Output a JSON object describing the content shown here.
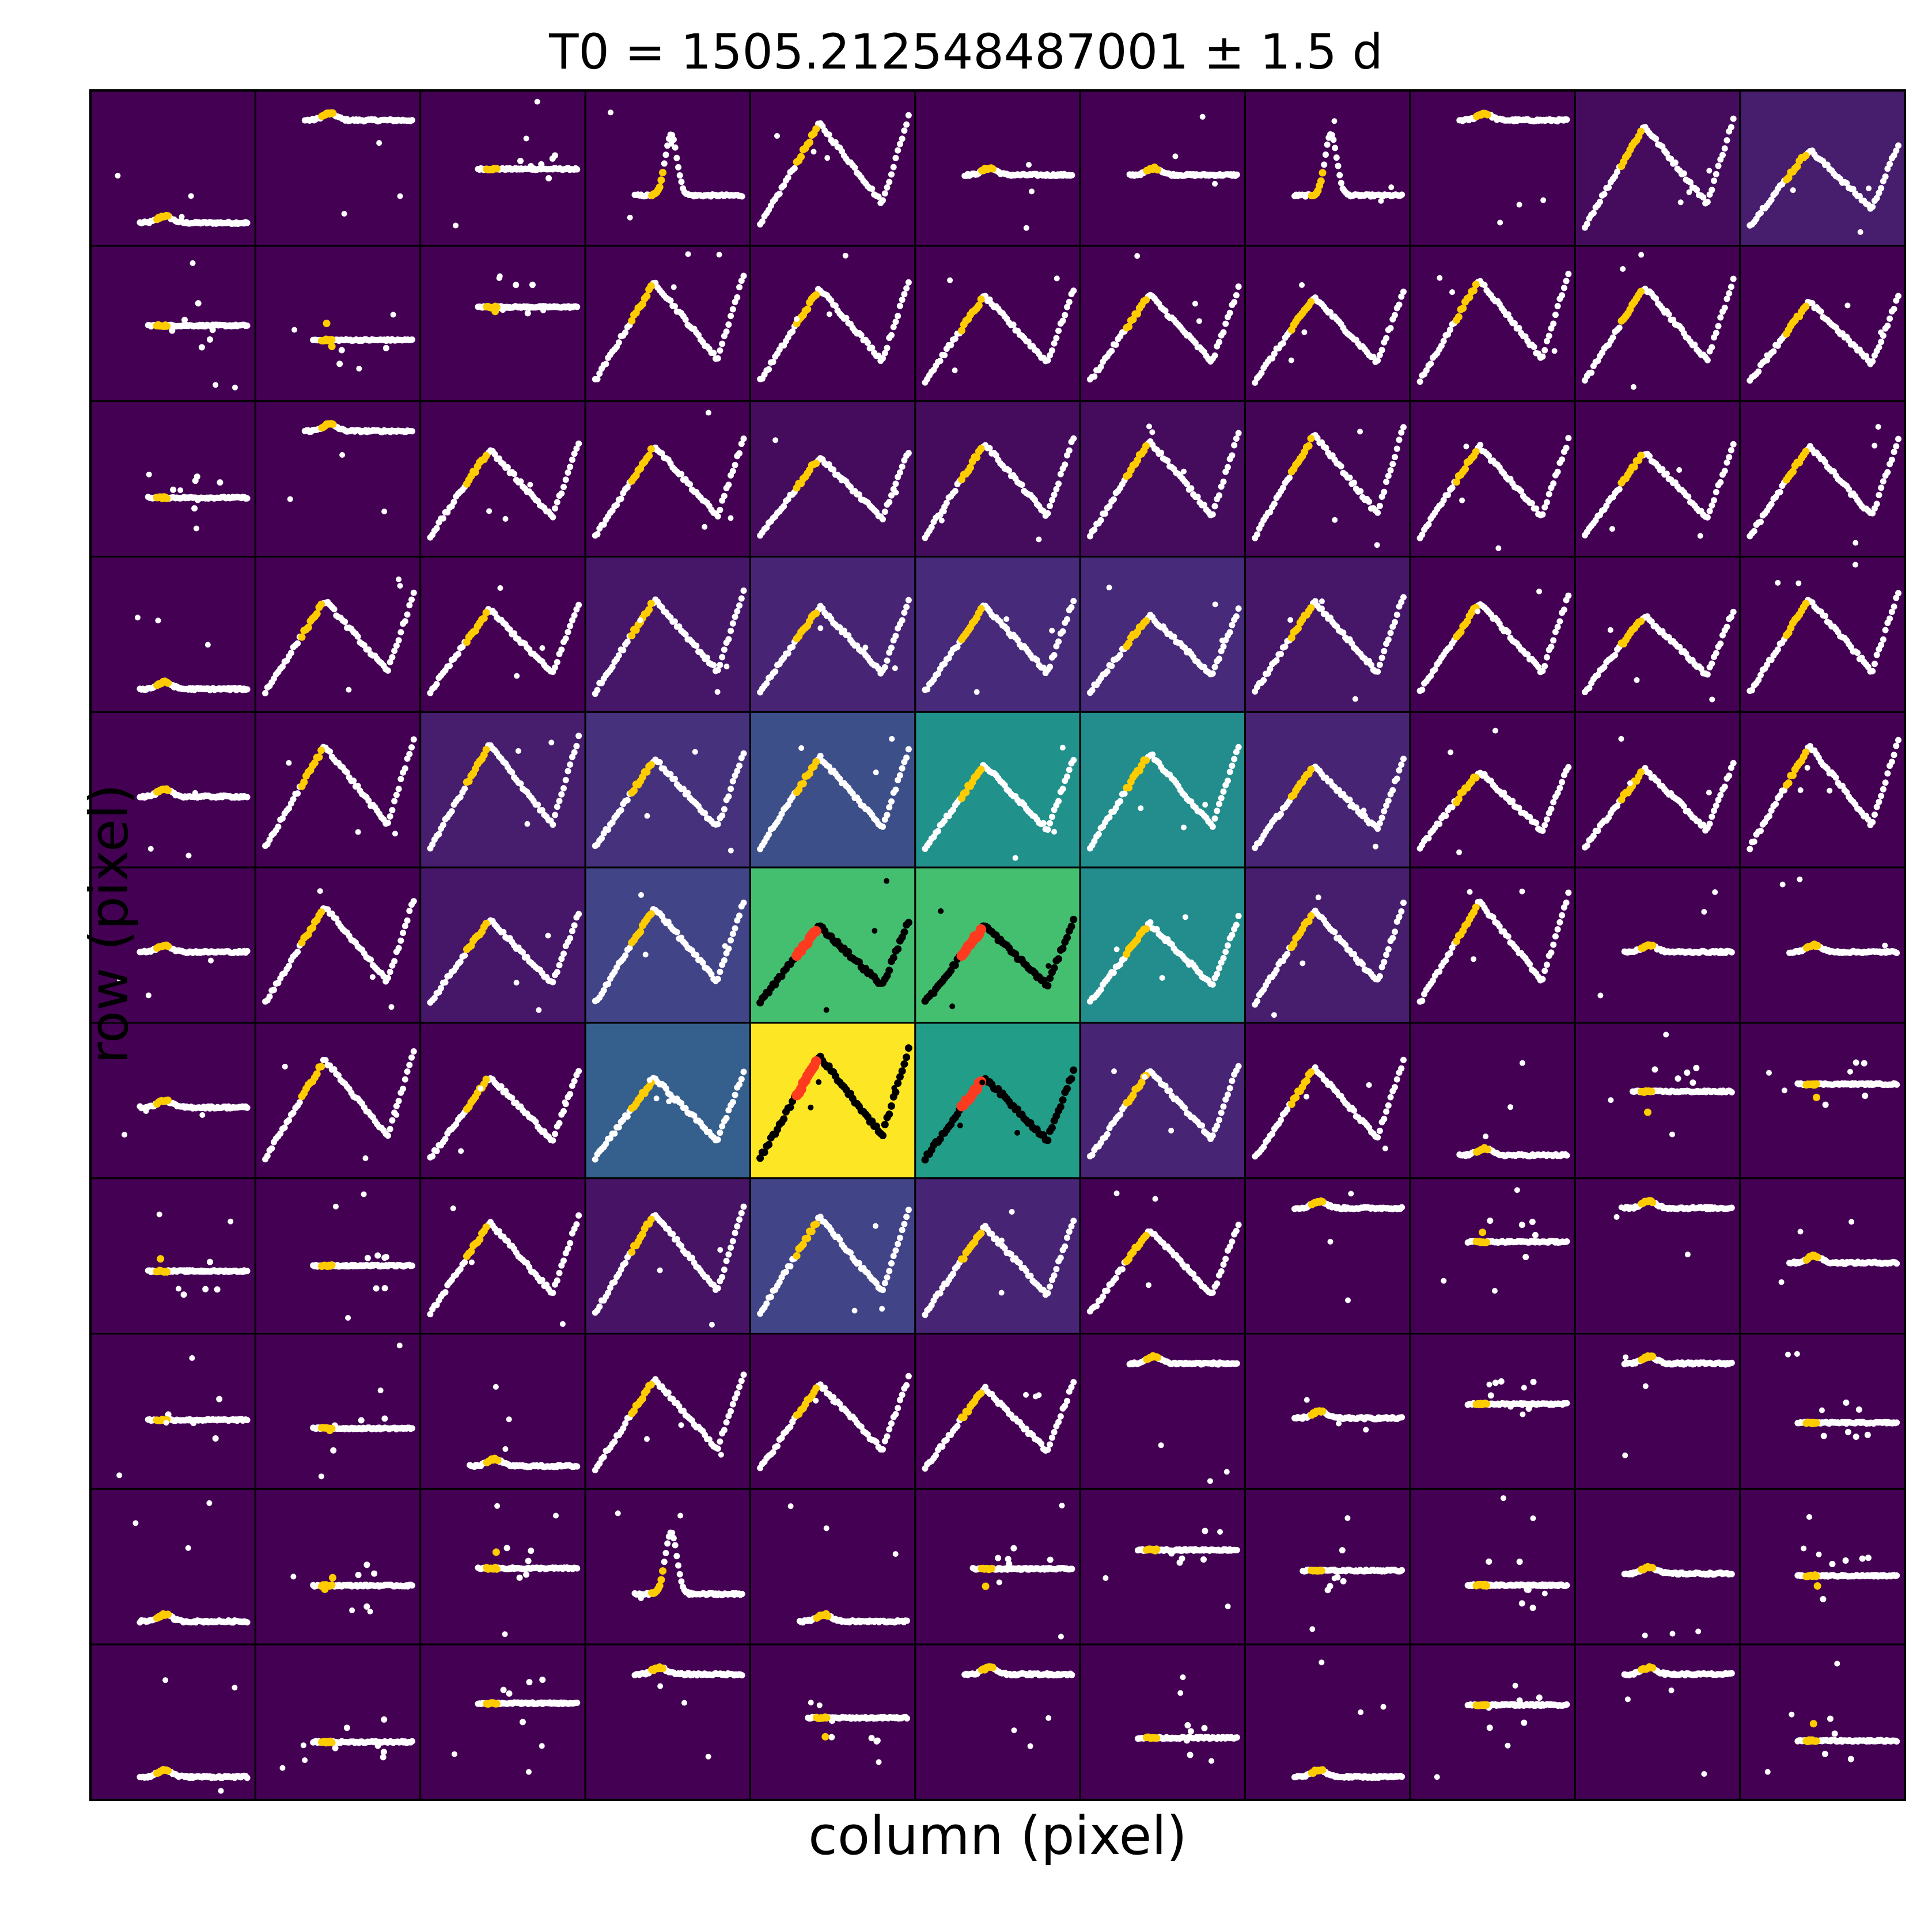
{
  "chart_data": {
    "type": "heatmap",
    "subtype": "pixel-grid of small light-curve panels (target pixel file view)",
    "title": "T0 = 1505.212548487001 ± 1.5 d",
    "xlabel": "column (pixel)",
    "ylabel": "row (pixel)",
    "grid": {
      "rows": 11,
      "cols": 11
    },
    "colormap": "viridis",
    "colors": {
      "point_default": "#ffffff",
      "point_in_aperture": "#000000",
      "transit_window": "#ffcc00",
      "transit_window_in_aperture": "#ff3b1f",
      "cell_border": "#000000",
      "viridis_stops": [
        "#440154",
        "#482475",
        "#414487",
        "#355f8d",
        "#2a788e",
        "#21918c",
        "#22a884",
        "#44bf70",
        "#7ad151",
        "#bddf26",
        "#fde725"
      ]
    },
    "intensity": [
      [
        0.0,
        0.0,
        0.0,
        0.0,
        0.0,
        0.0,
        0.0,
        0.0,
        0.0,
        0.03,
        0.08
      ],
      [
        0.0,
        0.0,
        0.0,
        0.0,
        0.0,
        0.0,
        0.0,
        0.0,
        0.0,
        0.0,
        0.0
      ],
      [
        0.0,
        0.0,
        0.0,
        0.0,
        0.03,
        0.03,
        0.03,
        0.01,
        0.0,
        0.0,
        0.0
      ],
      [
        0.0,
        0.0,
        0.0,
        0.06,
        0.1,
        0.12,
        0.12,
        0.06,
        0.0,
        0.0,
        0.0
      ],
      [
        0.0,
        0.0,
        0.08,
        0.14,
        0.24,
        0.5,
        0.48,
        0.1,
        0.0,
        0.0,
        0.0
      ],
      [
        0.0,
        0.0,
        0.06,
        0.2,
        0.7,
        0.7,
        0.48,
        0.08,
        0.0,
        0.0,
        0.0
      ],
      [
        0.0,
        0.0,
        0.0,
        0.3,
        1.0,
        0.55,
        0.1,
        0.0,
        0.0,
        0.0,
        0.0
      ],
      [
        0.0,
        0.0,
        0.0,
        0.05,
        0.2,
        0.1,
        0.0,
        0.0,
        0.0,
        0.0,
        0.0
      ],
      [
        0.0,
        0.0,
        0.0,
        0.0,
        0.0,
        0.0,
        0.0,
        0.0,
        0.0,
        0.0,
        0.0
      ],
      [
        0.0,
        0.0,
        0.0,
        0.0,
        0.0,
        0.0,
        0.0,
        0.0,
        0.0,
        0.0,
        0.0
      ],
      [
        0.0,
        0.0,
        0.0,
        0.0,
        0.0,
        0.0,
        0.0,
        0.0,
        0.0,
        0.0,
        0.0
      ]
    ],
    "aperture_mask": [
      [
        0,
        0,
        0,
        0,
        0,
        0,
        0,
        0,
        0,
        0,
        0
      ],
      [
        0,
        0,
        0,
        0,
        0,
        0,
        0,
        0,
        0,
        0,
        0
      ],
      [
        0,
        0,
        0,
        0,
        0,
        0,
        0,
        0,
        0,
        0,
        0
      ],
      [
        0,
        0,
        0,
        0,
        0,
        0,
        0,
        0,
        0,
        0,
        0
      ],
      [
        0,
        0,
        0,
        0,
        0,
        0,
        0,
        0,
        0,
        0,
        0
      ],
      [
        0,
        0,
        0,
        0,
        1,
        1,
        0,
        0,
        0,
        0,
        0
      ],
      [
        0,
        0,
        0,
        0,
        1,
        1,
        0,
        0,
        0,
        0,
        0
      ],
      [
        0,
        0,
        0,
        0,
        0,
        0,
        0,
        0,
        0,
        0,
        0
      ],
      [
        0,
        0,
        0,
        0,
        0,
        0,
        0,
        0,
        0,
        0,
        0
      ],
      [
        0,
        0,
        0,
        0,
        0,
        0,
        0,
        0,
        0,
        0,
        0
      ],
      [
        0,
        0,
        0,
        0,
        0,
        0,
        0,
        0,
        0,
        0,
        0
      ]
    ],
    "panel_shape": [
      [
        "flat-low",
        "flat-top",
        "spiky",
        "peak",
        "curve",
        "flat-mid",
        "flat-mid",
        "peak",
        "flat-top",
        "curve",
        "curve"
      ],
      [
        "spiky",
        "spiky",
        "spiky",
        "curve",
        "curve",
        "curve",
        "curve",
        "curve",
        "curve",
        "curve",
        "curve"
      ],
      [
        "spiky",
        "flat-top",
        "curve",
        "curve",
        "curve",
        "curve",
        "curve",
        "curve",
        "curve",
        "curve",
        "curve"
      ],
      [
        "flat-low",
        "curve",
        "curve",
        "curve",
        "curve",
        "curve",
        "curve",
        "curve",
        "curve",
        "curve",
        "curve"
      ],
      [
        "flat-mid",
        "curve",
        "curve",
        "curve",
        "curve",
        "curve",
        "curve",
        "curve",
        "curve",
        "curve",
        "curve"
      ],
      [
        "flat-mid",
        "curve",
        "curve",
        "curve",
        "curve",
        "curve",
        "curve",
        "curve",
        "curve",
        "flat-mid",
        "flat-mid"
      ],
      [
        "flat-mid",
        "curve",
        "curve",
        "curve",
        "curve",
        "curve",
        "curve",
        "curve",
        "flat-low",
        "spiky",
        "spiky"
      ],
      [
        "spiky",
        "spiky",
        "curve",
        "curve",
        "curve",
        "curve",
        "curve",
        "flat-top",
        "spiky",
        "flat-top",
        "flat-mid"
      ],
      [
        "spiky",
        "spiky",
        "flat-low",
        "curve",
        "curve",
        "curve",
        "flat-top",
        "flat-mid",
        "spiky",
        "flat-top",
        "spiky"
      ],
      [
        "flat-low",
        "spiky",
        "spiky",
        "peak",
        "flat-low",
        "spiky",
        "spiky",
        "spiky",
        "spiky",
        "flat-mid",
        "spiky"
      ],
      [
        "flat-low",
        "spiky",
        "spiky",
        "flat-top",
        "spiky",
        "flat-top",
        "spiky",
        "flat-low",
        "spiky",
        "flat-top",
        "spiky"
      ]
    ]
  }
}
